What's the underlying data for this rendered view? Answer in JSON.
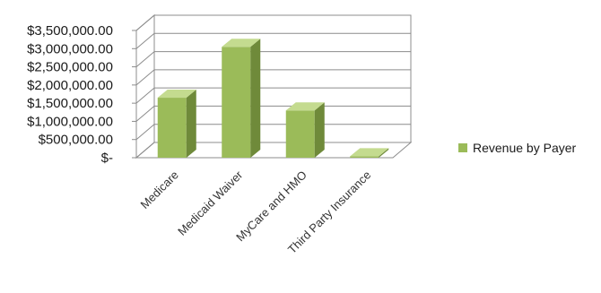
{
  "chart_data": {
    "type": "bar",
    "style": "3d-column",
    "categories": [
      "Medicare",
      "Medicaid Waiver",
      "MyCare and HMO",
      "Third Party Insurance"
    ],
    "series": [
      {
        "name": "Revenue by Payer",
        "values": [
          1650000,
          3050000,
          1300000,
          40000
        ],
        "color": "#9bbb59"
      }
    ],
    "ylim": [
      0,
      3500000
    ],
    "yticks": [
      0,
      500000,
      1000000,
      1500000,
      2000000,
      2500000,
      3000000,
      3500000
    ],
    "ytick_labels": [
      "$-",
      "$500,000.00",
      "$1,000,000.00",
      "$1,500,000.00",
      "$2,000,000.00",
      "$2,500,000.00",
      "$3,000,000.00",
      "$3,500,000.00"
    ],
    "grid": true,
    "legend": {
      "position": "right"
    }
  },
  "colors": {
    "bar_front": "#9bbb59",
    "bar_side": "#6f8a3a",
    "bar_top": "#c4db8f",
    "wall": "#ffffff",
    "grid": "#8c8c8c",
    "floor": "#ffffff"
  }
}
